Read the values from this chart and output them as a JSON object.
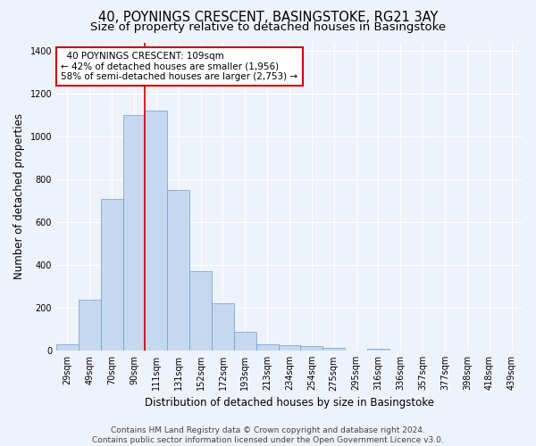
{
  "title": "40, POYNINGS CRESCENT, BASINGSTOKE, RG21 3AY",
  "subtitle": "Size of property relative to detached houses in Basingstoke",
  "xlabel": "Distribution of detached houses by size in Basingstoke",
  "ylabel": "Number of detached properties",
  "categories": [
    "29sqm",
    "49sqm",
    "70sqm",
    "90sqm",
    "111sqm",
    "131sqm",
    "152sqm",
    "172sqm",
    "193sqm",
    "213sqm",
    "234sqm",
    "254sqm",
    "275sqm",
    "295sqm",
    "316sqm",
    "336sqm",
    "357sqm",
    "377sqm",
    "398sqm",
    "418sqm",
    "439sqm"
  ],
  "bar_heights": [
    30,
    240,
    710,
    1100,
    1120,
    750,
    370,
    220,
    90,
    30,
    25,
    20,
    15,
    0,
    10,
    0,
    0,
    0,
    0,
    0,
    0
  ],
  "bar_color": "#c5d8f0",
  "bar_edge_color": "#6a9fcf",
  "vline_color": "#cc0000",
  "ylim": [
    0,
    1440
  ],
  "annotation_text": "  40 POYNINGS CRESCENT: 109sqm\n← 42% of detached houses are smaller (1,956)\n58% of semi-detached houses are larger (2,753) →",
  "annotation_box_color": "#ffffff",
  "annotation_box_edgecolor": "#cc0000",
  "footer_text": "Contains HM Land Registry data © Crown copyright and database right 2024.\nContains public sector information licensed under the Open Government Licence v3.0.",
  "bg_color": "#eef2fa",
  "grid_color": "#ffffff",
  "title_fontsize": 10.5,
  "subtitle_fontsize": 9.5,
  "axis_label_fontsize": 8.5,
  "tick_fontsize": 7,
  "annotation_fontsize": 7.5,
  "footer_fontsize": 6.5,
  "vline_x_index": 3.5
}
